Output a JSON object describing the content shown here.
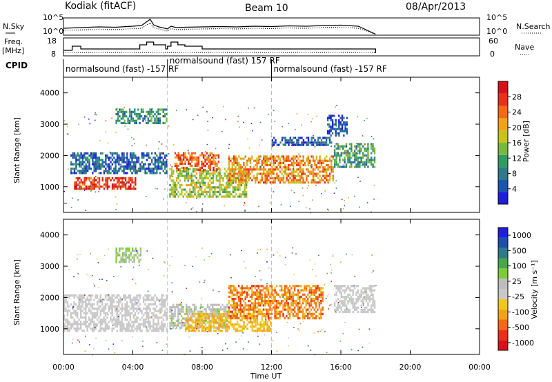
{
  "header": {
    "station": "Kodiak (fitACF)",
    "beam": "Beam 10",
    "date": "08/Apr/2013"
  },
  "colors": {
    "scale_bg": "#ffffff",
    "frame": "#000000",
    "noise_line": "#000000",
    "grid_dash": "#bdbdbd"
  },
  "chart_data": [
    {
      "type": "line",
      "panel": "noise",
      "left_label": "N.Sky",
      "right_label": "N.Search",
      "left_ticks": [
        "10^5",
        "10^0"
      ],
      "right_ticks": [
        "10^5",
        "10^0"
      ],
      "series": [
        {
          "name": "N.Sky",
          "style": "solid"
        },
        {
          "name": "N.Search",
          "style": "dotted"
        }
      ],
      "x": [
        0,
        1,
        2,
        3,
        4,
        4.5,
        5,
        5.2,
        5.5,
        6,
        6.2,
        6.5,
        7,
        8,
        9,
        10,
        11,
        12,
        13,
        14,
        15,
        16,
        17,
        18
      ],
      "sky": [
        2,
        2.2,
        2.4,
        2.3,
        2.6,
        2.8,
        4.6,
        3.0,
        2.4,
        1.8,
        2.6,
        2.2,
        2.3,
        2.4,
        2.5,
        2.4,
        2.6,
        2.5,
        2.7,
        2.6,
        2.8,
        2.9,
        2.6,
        0.3
      ],
      "search": [
        1.4,
        1.5,
        1.7,
        1.6,
        1.9,
        2.0,
        3.6,
        2.2,
        1.8,
        1.2,
        1.9,
        1.6,
        1.7,
        1.8,
        1.9,
        1.8,
        2.0,
        1.9,
        2.1,
        2.0,
        2.2,
        2.3,
        2.0,
        0.3
      ]
    },
    {
      "type": "line",
      "panel": "frequency",
      "left_label": "Freq.",
      "left_units": "[MHz]",
      "right_label": "Nave",
      "left_ticks": [
        "18",
        "8"
      ],
      "right_ticks": [
        "60",
        "0"
      ],
      "series": [
        {
          "name": "Freq.",
          "style": "solid"
        },
        {
          "name": "Nave",
          "style": "dotted"
        }
      ],
      "x": [
        0,
        0.5,
        0.8,
        1.0,
        2.0,
        3.0,
        3.6,
        4.4,
        4.8,
        5.2,
        5.9,
        6.0,
        6.2,
        6.6,
        7.0,
        7.5,
        8.0,
        9.0,
        10,
        11,
        12,
        13,
        14,
        15,
        16,
        16.7,
        17,
        18
      ],
      "freq": [
        10,
        13,
        13,
        11,
        11,
        11,
        11,
        14,
        16,
        14,
        11,
        13,
        16,
        14,
        13,
        13,
        11,
        11,
        11,
        11,
        11,
        11,
        11,
        11,
        11,
        11,
        11,
        8
      ],
      "nave": [
        11,
        11,
        11,
        11,
        11,
        11,
        11,
        11,
        11,
        11,
        11,
        11,
        11,
        11,
        11,
        11,
        11,
        11,
        11,
        11,
        11,
        11,
        11,
        11,
        11,
        11,
        11,
        11
      ]
    },
    {
      "type": "table",
      "panel": "cpid",
      "label": "CPID",
      "segments": [
        {
          "start": 0,
          "end": 6,
          "text": "normalsound (fast) -157 RF"
        },
        {
          "start": 6,
          "end": 12,
          "text": "normalsound (fast) 157 RF"
        },
        {
          "start": 12,
          "end": 18,
          "text": "normalsound (fast) -157 RF"
        }
      ]
    },
    {
      "type": "heatmap",
      "panel": "power",
      "ylabel": "Slant Range [km]",
      "yticks": [
        "4000",
        "3000",
        "2000",
        "1000"
      ],
      "ylim": [
        180,
        4500
      ],
      "xlim": [
        0,
        24
      ],
      "colorbar": {
        "label": "Power [dB]",
        "ticks": [
          "28",
          "24",
          "20",
          "16",
          "12",
          "8",
          "4"
        ],
        "range": [
          0,
          32
        ],
        "colors": [
          "#1f1fd8",
          "#1a56b0",
          "#2f7a8a",
          "#2f9c62",
          "#79b840",
          "#c6c21e",
          "#f1a11a",
          "#f26a14",
          "#e63219",
          "#d4121a"
        ]
      },
      "bands": [
        {
          "t0": 0.4,
          "t1": 6.0,
          "r0": 1400,
          "r1": 2100,
          "level": 6
        },
        {
          "t0": 0.6,
          "t1": 4.2,
          "r0": 900,
          "r1": 1300,
          "level": 27
        },
        {
          "t0": 3.0,
          "t1": 6.0,
          "r0": 3000,
          "r1": 3500,
          "level": 10
        },
        {
          "t0": 6.1,
          "t1": 10.6,
          "r0": 650,
          "r1": 1600,
          "level": 16
        },
        {
          "t0": 6.4,
          "t1": 9.0,
          "r0": 1500,
          "r1": 2100,
          "level": 25
        },
        {
          "t0": 9.5,
          "t1": 15.6,
          "r0": 1100,
          "r1": 2000,
          "level": 22
        },
        {
          "t0": 12.0,
          "t1": 15.5,
          "r0": 2300,
          "r1": 2600,
          "level": 5
        },
        {
          "t0": 15.6,
          "t1": 18.0,
          "r0": 1600,
          "r1": 2400,
          "level": 11
        },
        {
          "t0": 15.2,
          "t1": 16.4,
          "r0": 2600,
          "r1": 3300,
          "level": 4
        }
      ]
    },
    {
      "type": "heatmap",
      "panel": "velocity",
      "ylabel": "Slant Range [km]",
      "yticks": [
        "4000",
        "3000",
        "2000",
        "1000"
      ],
      "ylim": [
        180,
        4500
      ],
      "xlim": [
        0,
        24
      ],
      "xticks": [
        "00:00",
        "04:00",
        "08:00",
        "12:00",
        "16:00",
        "20:00",
        "00:00"
      ],
      "xlabel": "Time UT",
      "colorbar": {
        "label": "Velocity [m s⁻¹]",
        "ticks": [
          "1000",
          "500",
          "100",
          "25",
          "-25",
          "-100",
          "-500",
          "-1000"
        ],
        "range": [
          -1200,
          1200
        ],
        "colors": [
          "#d4121a",
          "#e63219",
          "#f26a14",
          "#f1a11a",
          "#f0c71e",
          "#c8c8c8",
          "#bdbdbd",
          "#7ecb3a",
          "#47a84a",
          "#2f7a8a",
          "#1d4fa8",
          "#1f1fd8"
        ]
      },
      "bands": [
        {
          "t0": 0.0,
          "t1": 6.0,
          "r0": 900,
          "r1": 2100,
          "level": 0,
          "gray": true
        },
        {
          "t0": 6.1,
          "t1": 9.5,
          "r0": 1000,
          "r1": 1800,
          "level": 150
        },
        {
          "t0": 7.0,
          "t1": 12.0,
          "r0": 900,
          "r1": 1500,
          "level": -400
        },
        {
          "t0": 9.5,
          "t1": 15.0,
          "r0": 1300,
          "r1": 2400,
          "level": -600
        },
        {
          "t0": 15.6,
          "t1": 18.0,
          "r0": 1500,
          "r1": 2400,
          "level": 10,
          "gray": true
        },
        {
          "t0": 3.0,
          "t1": 4.5,
          "r0": 3100,
          "r1": 3600,
          "level": 200
        }
      ]
    }
  ]
}
